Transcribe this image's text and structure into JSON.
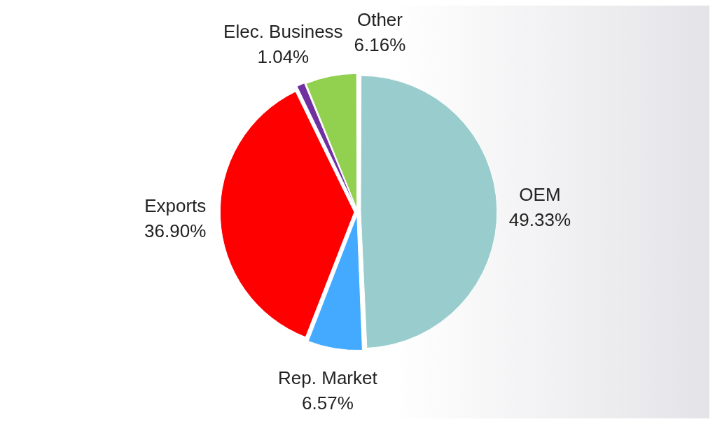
{
  "chart_data": {
    "type": "pie",
    "categories": [
      "OEM",
      "Rep. Market",
      "Exports",
      "Elec. Business",
      "Other"
    ],
    "values": [
      49.33,
      6.57,
      36.9,
      1.04,
      6.16
    ],
    "value_labels": [
      "49.33%",
      "6.57%",
      "36.90%",
      "1.04%",
      "6.16%"
    ],
    "colors": [
      "#99cccc",
      "#44aaff",
      "#ff0000",
      "#7030a0",
      "#92d050"
    ],
    "legend": false
  }
}
